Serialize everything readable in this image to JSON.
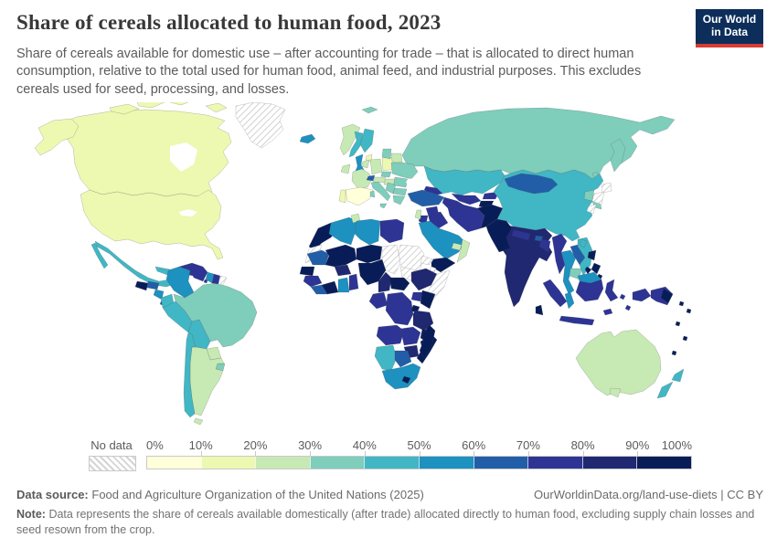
{
  "header": {
    "title": "Share of cereals allocated to human food, 2023",
    "subtitle": "Share of cereals available for domestic use – after accounting for trade – that is allocated to direct human consumption, relative to the total used for human food, animal feed, and industrial purposes. This excludes cereals used for seed, processing, and losses.",
    "logo": {
      "line1": "Our World",
      "line2": "in Data"
    }
  },
  "chart_data": {
    "type": "choropleth_map",
    "title": "Share of cereals allocated to human food",
    "year": "2023",
    "unit": "%",
    "legend": {
      "no_data_label": "No data",
      "tick_labels": [
        "0%",
        "10%",
        "20%",
        "30%",
        "40%",
        "50%",
        "60%",
        "70%",
        "80%",
        "90%",
        "100%"
      ],
      "bin_edges": [
        0,
        10,
        20,
        30,
        40,
        50,
        60,
        70,
        80,
        90,
        100
      ],
      "colors": [
        "#ffffd9",
        "#edf8b1",
        "#c7e9b4",
        "#7fcdbb",
        "#41b6c4",
        "#1d91c0",
        "#225ea8",
        "#2d3494",
        "#1f2870",
        "#081d58"
      ],
      "no_data_pattern": "diagonal-hatch"
    },
    "regions": {
      "canada": 1,
      "usa": 1,
      "greenland": "nd",
      "mexico": 4,
      "guatemala": 9,
      "honduras": 6,
      "nicaragua": 5,
      "costa_rica_panama": 6,
      "cuba": 4,
      "jamaica": 9,
      "haiti": 9,
      "dominican_republic": 7,
      "puerto_rico": 7,
      "lesser_antilles": 7,
      "colombia": 5,
      "venezuela": 7,
      "guyana": 5,
      "suriname": 7,
      "french_guiana": "nd",
      "ecuador": 4,
      "peru": 4,
      "brazil": 3,
      "bolivia": 4,
      "paraguay": 2,
      "uruguay": 3,
      "argentina": 2,
      "chile": 4,
      "iceland": 5,
      "norway": 2,
      "sweden": 4,
      "finland": 4,
      "svalbard": 3,
      "denmark": 1,
      "uk": 5,
      "ireland": 2,
      "netherlands_belgium": 2,
      "germany": 2,
      "poland": 1,
      "baltics": 3,
      "belarus": 2,
      "ukraine": 3,
      "france": 2,
      "spain": 0,
      "portugal": 1,
      "switzerland": 6,
      "czechia": 3,
      "austria": 2,
      "hungary": 2,
      "italy": 3,
      "balkans": 3,
      "romania": 3,
      "bulgaria": 3,
      "greece": 3,
      "russia": 3,
      "kazakhstan": 4,
      "uzbekistan": 7,
      "turkmenistan": 7,
      "kyrgyzstan": 7,
      "tajikistan": 9,
      "caucasus": 7,
      "turkey": 6,
      "syria": 7,
      "iraq": 7,
      "jordan": 7,
      "israel_lebanon": 2,
      "iran": 7,
      "afghanistan": 9,
      "pakistan": 9,
      "saudi_arabia": 5,
      "yemen": 9,
      "oman": 2,
      "uae_qatar": 2,
      "india": 8,
      "nepal": 7,
      "bhutan": 6,
      "bangladesh": 7,
      "sri_lanka": 9,
      "myanmar": 7,
      "thailand": 5,
      "laos": 6,
      "vietnam": 4,
      "cambodia": 3,
      "malaysia_peninsula": 5,
      "borneo_malaysia": 5,
      "china": 4,
      "mongolia": 6,
      "north_korea": 3,
      "south_korea": 3,
      "japan": "nd",
      "taiwan": 4,
      "philippines": 9,
      "sumatra": 7,
      "java": 7,
      "borneo_indonesia": 7,
      "sulawesi": 7,
      "west_papua": 7,
      "png": 7,
      "png_east": 9,
      "timor": 7,
      "maluku": 7,
      "pacific_islands": 9,
      "australia": 2,
      "tasmania": 2,
      "new_zealand": 4,
      "morocco": 9,
      "western_sahara": "nd",
      "algeria": 5,
      "tunisia": 2,
      "libya": 5,
      "egypt": 7,
      "mauritania": 6,
      "senegal_gambia": 9,
      "guinea": 7,
      "sierra_leone_liberia": 6,
      "mali": 9,
      "burkina_faso": 8,
      "cote_divoire": 9,
      "ghana": 5,
      "togo_benin": 7,
      "niger": 9,
      "nigeria": 9,
      "chad": "nd",
      "sudan": "nd",
      "south_sudan": "nd",
      "eritrea": "nd",
      "djibouti": "nd",
      "ethiopia": 8,
      "somalia": "nd",
      "cameroon": 8,
      "central_african_republic": 9,
      "uganda": 7,
      "kenya": 9,
      "gabon_congo": 7,
      "drc": 7,
      "rwanda_burundi": 9,
      "tanzania": 8,
      "angola": 7,
      "zambia": 7,
      "malawi": 9,
      "mozambique": 9,
      "zimbabwe": 8,
      "namibia": 4,
      "botswana": 6,
      "south_africa": 5,
      "lesotho": 9,
      "madagascar": 9
    }
  },
  "footer": {
    "source_label": "Data source:",
    "source": "Food and Agriculture Organization of the United Nations (2025)",
    "link": "OurWorldinData.org/land-use-diets | CC BY",
    "note_label": "Note:",
    "note": "Data represents the share of cereals available domestically (after trade) allocated directly to human food, excluding supply chain losses and seed resown from the crop."
  }
}
